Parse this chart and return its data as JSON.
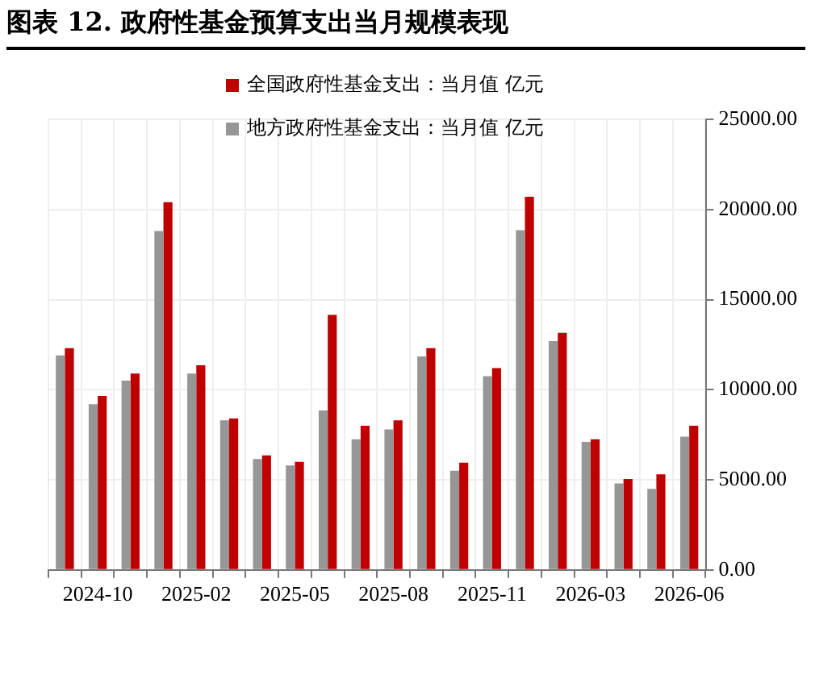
{
  "chart_data": {
    "type": "bar",
    "title": "图表 12. 政府性基金预算支出当月规模表现",
    "categories": [
      null,
      "2024-10",
      null,
      null,
      "2025-02",
      null,
      null,
      "2025-05",
      null,
      null,
      "2025-08",
      null,
      null,
      "2025-11",
      null,
      null,
      "2026-03",
      null,
      null,
      "2026-06"
    ],
    "series": [
      {
        "name": "地方政府性基金支出：当月值 亿元",
        "color": "#969696",
        "values": [
          11900,
          9200,
          10500,
          18800,
          10900,
          8300,
          6150,
          5800,
          8850,
          7250,
          7800,
          11850,
          5500,
          10750,
          18850,
          12700,
          7100,
          4800,
          4500,
          7400
        ]
      },
      {
        "name": "全国政府性基金支出：当月值 亿元",
        "color": "#c00000",
        "values": [
          12300,
          9650,
          10900,
          20400,
          11350,
          8400,
          6350,
          6000,
          14150,
          8000,
          8300,
          12300,
          5950,
          11200,
          20700,
          13150,
          7250,
          5050,
          5300,
          8000
        ]
      }
    ],
    "legend": "top",
    "ylim": [
      0,
      25000
    ],
    "yticks": [
      {
        "value": 0,
        "label": "0.00"
      },
      {
        "value": 5000,
        "label": "5000.00"
      },
      {
        "value": 10000,
        "label": "10000.00"
      },
      {
        "value": 15000,
        "label": "15000.00"
      },
      {
        "value": 20000,
        "label": "20000.00"
      },
      {
        "value": 25000,
        "label": "25000.00"
      }
    ],
    "grid": true
  }
}
